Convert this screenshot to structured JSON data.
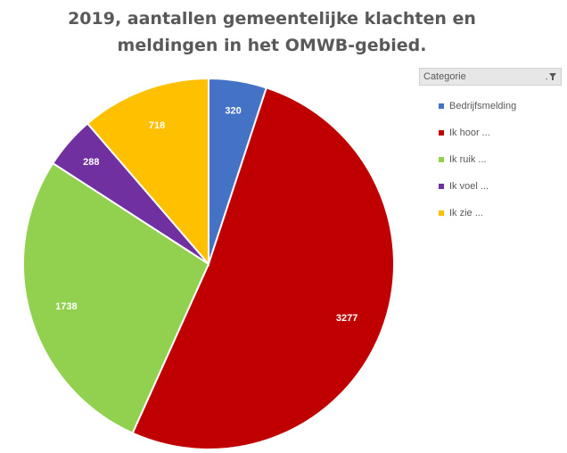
{
  "chart_data": {
    "type": "pie",
    "title_lines": [
      "2019, aantallen gemeentelijke klachten en",
      "meldingen in het OMWB-gebied."
    ],
    "legend_title": "Categorie",
    "legend_filter_icon": "filter-dropdown-icon",
    "legend_placement": "right",
    "slices": [
      {
        "label": "Bedrijfsmelding",
        "value": 320,
        "data_label": "320",
        "color": "#4472c4"
      },
      {
        "label": "Ik hoor ...",
        "value": 3277,
        "data_label": "3277",
        "color": "#c00000"
      },
      {
        "label": "Ik ruik ...",
        "value": 1738,
        "data_label": "1738",
        "color": "#92d050"
      },
      {
        "label": "Ik voel ...",
        "value": 288,
        "data_label": "288",
        "color": "#7030a0"
      },
      {
        "label": "Ik zie ...",
        "value": 718,
        "data_label": "718",
        "color": "#ffc000"
      }
    ]
  }
}
